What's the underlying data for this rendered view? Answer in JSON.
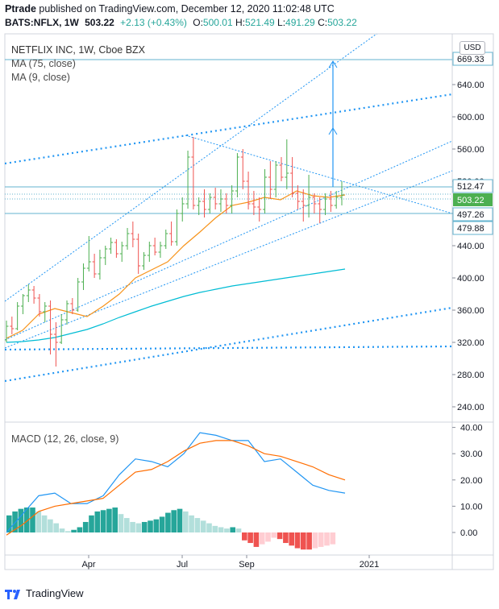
{
  "header": {
    "user": "Ptrade",
    "published_text": "published on TradingView.com, December 12, 2020 11:02:48 UTC",
    "symbol": "BATS:NFLX, 1W",
    "last": "503.22",
    "change": "+2.13 (+0.43%)",
    "o_label": "O:",
    "o_value": "500.01",
    "h_label": "H:",
    "h_value": "521.49",
    "l_label": "L:",
    "l_value": "491.29",
    "c_label": "C:",
    "c_value": "503.22"
  },
  "legend": {
    "title": "NETFLIX INC, 1W, Cboe BZX",
    "ma75": "MA (75, close)",
    "ma9": "MA (9, close)",
    "macd": "MACD (12, 26, close, 9)",
    "currency": "USD"
  },
  "footer": {
    "brand": "TradingView"
  },
  "colors": {
    "up": "#26a69a",
    "down": "#ef5350",
    "candle_up": "#4caf50",
    "ma75": "#00bcd4",
    "ma9": "#f7931a",
    "macd_line": "#2196f3",
    "signal_line": "#ff6d00",
    "trend": "#2196f3",
    "hline": "#63b3cf"
  },
  "chart_data": [
    {
      "type": "line",
      "title": "NETFLIX INC, 1W, Cboe BZX",
      "x_tick_labels": [
        "Apr",
        "Jul",
        "Sep",
        "2021"
      ],
      "y_ticks": [
        240,
        280,
        320,
        360,
        400,
        440,
        480,
        520,
        560,
        600,
        640
      ],
      "y_tick_labels": [
        "240.00",
        "280.00",
        "320.00",
        "360.00",
        "400.00",
        "440.00",
        "480.00",
        "520.00",
        "560.00",
        "600.00",
        "640.00"
      ],
      "ylim": [
        215,
        695
      ],
      "price_labels": [
        {
          "value": 669.33,
          "text": "669.33",
          "style": "plain"
        },
        {
          "value": 512.47,
          "text": "512.47",
          "style": "plain"
        },
        {
          "value": 503.22,
          "text": "503.22",
          "style": "last"
        },
        {
          "value": 497.26,
          "text": "497.26",
          "style": "plain"
        },
        {
          "value": 479.88,
          "text": "479.88",
          "style": "plain"
        }
      ],
      "candles": [
        [
          323,
          347,
          320,
          340
        ],
        [
          340,
          352,
          330,
          337
        ],
        [
          337,
          370,
          335,
          365
        ],
        [
          365,
          380,
          355,
          378
        ],
        [
          378,
          392,
          370,
          385
        ],
        [
          385,
          390,
          368,
          375
        ],
        [
          375,
          380,
          352,
          358
        ],
        [
          358,
          370,
          345,
          365
        ],
        [
          365,
          372,
          305,
          330
        ],
        [
          330,
          345,
          290,
          320
        ],
        [
          320,
          355,
          318,
          348
        ],
        [
          348,
          372,
          342,
          368
        ],
        [
          368,
          375,
          355,
          360
        ],
        [
          360,
          400,
          358,
          395
        ],
        [
          395,
          418,
          385,
          412
        ],
        [
          412,
          452,
          408,
          420
        ],
        [
          420,
          430,
          400,
          405
        ],
        [
          405,
          435,
          398,
          425
        ],
        [
          425,
          440,
          416,
          436
        ],
        [
          436,
          450,
          430,
          444
        ],
        [
          444,
          448,
          425,
          430
        ],
        [
          430,
          445,
          420,
          440
        ],
        [
          440,
          462,
          435,
          455
        ],
        [
          455,
          470,
          438,
          448
        ],
        [
          448,
          455,
          405,
          415
        ],
        [
          415,
          432,
          410,
          428
        ],
        [
          428,
          445,
          420,
          440
        ],
        [
          440,
          450,
          428,
          432
        ],
        [
          432,
          445,
          425,
          440
        ],
        [
          440,
          460,
          436,
          455
        ],
        [
          455,
          470,
          440,
          445
        ],
        [
          445,
          485,
          440,
          480
        ],
        [
          480,
          500,
          470,
          492
        ],
        [
          492,
          558,
          486,
          550
        ],
        [
          550,
          575,
          485,
          490
        ],
        [
          490,
          500,
          478,
          495
        ],
        [
          495,
          510,
          475,
          485
        ],
        [
          485,
          505,
          480,
          500
        ],
        [
          500,
          512,
          485,
          492
        ],
        [
          492,
          510,
          482,
          498
        ],
        [
          498,
          505,
          480,
          490
        ],
        [
          490,
          515,
          480,
          508
        ],
        [
          508,
          555,
          500,
          550
        ],
        [
          550,
          560,
          510,
          520
        ],
        [
          520,
          532,
          485,
          492
        ],
        [
          492,
          508,
          478,
          488
        ],
        [
          488,
          500,
          470,
          485
        ],
        [
          485,
          535,
          480,
          525
        ],
        [
          525,
          545,
          498,
          510
        ],
        [
          510,
          545,
          500,
          540
        ],
        [
          540,
          550,
          520,
          525
        ],
        [
          525,
          572,
          510,
          530
        ],
        [
          530,
          550,
          500,
          505
        ],
        [
          505,
          515,
          485,
          495
        ],
        [
          495,
          510,
          470,
          490
        ],
        [
          490,
          528,
          475,
          500
        ],
        [
          500,
          505,
          480,
          492
        ],
        [
          492,
          500,
          468,
          485
        ],
        [
          485,
          505,
          478,
          498
        ],
        [
          498,
          508,
          482,
          490
        ],
        [
          490,
          508,
          486,
          500
        ],
        [
          500,
          520,
          490,
          503
        ]
      ],
      "series": [
        {
          "name": "MA (75, close)",
          "x": [
            0,
            20,
            40,
            60,
            80,
            100,
            120,
            140,
            160,
            180,
            200,
            220,
            240,
            260,
            280,
            300,
            320,
            340,
            360,
            380,
            400,
            420
          ],
          "values": [
            320,
            321,
            323,
            326,
            331,
            336,
            343,
            351,
            358,
            365,
            371,
            377,
            382,
            386,
            390,
            393,
            396,
            399,
            402,
            405,
            408,
            411
          ]
        },
        {
          "name": "MA (9, close)",
          "x": [
            0,
            20,
            40,
            60,
            80,
            100,
            120,
            140,
            160,
            180,
            200,
            220,
            240,
            260,
            280,
            300,
            320,
            340,
            360,
            380,
            400,
            420
          ],
          "values": [
            325,
            335,
            355,
            362,
            357,
            352,
            365,
            380,
            400,
            410,
            420,
            440,
            457,
            475,
            490,
            494,
            500,
            497,
            508,
            502,
            500,
            503
          ]
        }
      ]
    },
    {
      "type": "bar",
      "title": "MACD (12, 26, close, 9)",
      "y_ticks": [
        0,
        10,
        20,
        30,
        40
      ],
      "y_tick_labels": [
        "0.00",
        "10.00",
        "20.00",
        "30.00",
        "40.00"
      ],
      "ylim": [
        -7,
        41
      ],
      "histogram": [
        6.5,
        8,
        9,
        9.5,
        9.5,
        8,
        6.5,
        5,
        3.5,
        1.5,
        0.5,
        1,
        2,
        4,
        6.5,
        8,
        8.5,
        9,
        9.5,
        7,
        5.5,
        4,
        3.5,
        4,
        4.5,
        5,
        6,
        7.5,
        8.5,
        9,
        8,
        6.5,
        5.5,
        4.5,
        3.5,
        2.5,
        2,
        1.5,
        2,
        1.5,
        -3,
        -4,
        -5.5,
        -4.5,
        -3.5,
        -2,
        -2.5,
        -4,
        -5,
        -6,
        -6.5,
        -6.5,
        -6,
        -5.5,
        -5,
        -4.5
      ],
      "series": [
        {
          "name": "MACD",
          "x": [
            0,
            20,
            40,
            60,
            80,
            100,
            120,
            140,
            160,
            180,
            200,
            220,
            240,
            260,
            280,
            300,
            320,
            340,
            360,
            380,
            400,
            420
          ],
          "values": [
            0,
            7,
            14,
            15,
            11,
            11,
            14,
            22,
            28,
            27,
            25,
            30,
            38,
            37,
            35,
            35,
            27,
            28,
            23,
            18,
            16,
            15
          ]
        },
        {
          "name": "Signal",
          "x": [
            0,
            20,
            40,
            60,
            80,
            100,
            120,
            140,
            160,
            180,
            200,
            220,
            240,
            260,
            280,
            300,
            320,
            340,
            360,
            380,
            400,
            420
          ],
          "values": [
            -1,
            3,
            8,
            10,
            11,
            12,
            13,
            18,
            23,
            24,
            27,
            31,
            34,
            35,
            35,
            33,
            30,
            29,
            27,
            25,
            22,
            20
          ]
        }
      ]
    }
  ]
}
